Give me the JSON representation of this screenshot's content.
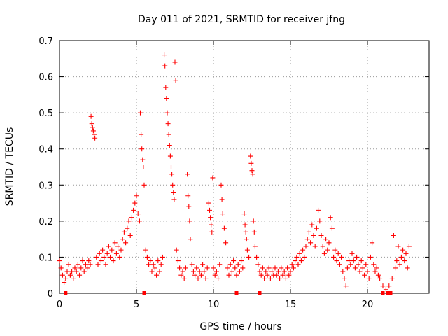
{
  "chart_data": {
    "type": "scatter",
    "title": "Day 011 of 2021, SRMTID for receiver jfng",
    "xlabel": "GPS time / hours",
    "ylabel": "SRMTID / TECUs",
    "xlim": [
      0,
      24
    ],
    "ylim": [
      0,
      0.7
    ],
    "xticks": [
      "0",
      "5",
      "10",
      "15",
      "20"
    ],
    "yticks": [
      "0",
      "0.1",
      "0.2",
      "0.3",
      "0.4",
      "0.5",
      "0.6",
      "0.7"
    ],
    "grid": true,
    "marker": "+",
    "color": "#ff0000",
    "baseline_markers_x": [
      0.4,
      5.5,
      11.5,
      13.0,
      21.0,
      21.3,
      21.5
    ],
    "series": [
      {
        "name": "SRMTID",
        "points": [
          [
            0.0,
            0.09
          ],
          [
            0.1,
            0.07
          ],
          [
            0.2,
            0.05
          ],
          [
            0.3,
            0.03
          ],
          [
            0.4,
            0.04
          ],
          [
            0.5,
            0.06
          ],
          [
            0.6,
            0.08
          ],
          [
            0.7,
            0.05
          ],
          [
            0.8,
            0.06
          ],
          [
            0.9,
            0.04
          ],
          [
            1.0,
            0.07
          ],
          [
            1.1,
            0.06
          ],
          [
            1.2,
            0.08
          ],
          [
            1.3,
            0.05
          ],
          [
            1.4,
            0.07
          ],
          [
            1.5,
            0.09
          ],
          [
            1.6,
            0.06
          ],
          [
            1.7,
            0.08
          ],
          [
            1.8,
            0.07
          ],
          [
            1.9,
            0.09
          ],
          [
            2.0,
            0.08
          ],
          [
            2.05,
            0.49
          ],
          [
            2.1,
            0.47
          ],
          [
            2.15,
            0.46
          ],
          [
            2.2,
            0.45
          ],
          [
            2.25,
            0.44
          ],
          [
            2.3,
            0.43
          ],
          [
            2.4,
            0.1
          ],
          [
            2.5,
            0.08
          ],
          [
            2.6,
            0.11
          ],
          [
            2.7,
            0.09
          ],
          [
            2.8,
            0.12
          ],
          [
            2.9,
            0.1
          ],
          [
            3.0,
            0.08
          ],
          [
            3.1,
            0.11
          ],
          [
            3.2,
            0.13
          ],
          [
            3.3,
            0.1
          ],
          [
            3.4,
            0.12
          ],
          [
            3.5,
            0.09
          ],
          [
            3.6,
            0.14
          ],
          [
            3.7,
            0.11
          ],
          [
            3.8,
            0.13
          ],
          [
            3.9,
            0.1
          ],
          [
            4.0,
            0.12
          ],
          [
            4.1,
            0.15
          ],
          [
            4.2,
            0.17
          ],
          [
            4.3,
            0.14
          ],
          [
            4.4,
            0.18
          ],
          [
            4.5,
            0.2
          ],
          [
            4.6,
            0.16
          ],
          [
            4.7,
            0.21
          ],
          [
            4.8,
            0.23
          ],
          [
            4.9,
            0.25
          ],
          [
            5.0,
            0.27
          ],
          [
            5.1,
            0.22
          ],
          [
            5.2,
            0.2
          ],
          [
            5.25,
            0.5
          ],
          [
            5.3,
            0.44
          ],
          [
            5.35,
            0.4
          ],
          [
            5.4,
            0.37
          ],
          [
            5.45,
            0.35
          ],
          [
            5.5,
            0.3
          ],
          [
            5.6,
            0.12
          ],
          [
            5.7,
            0.1
          ],
          [
            5.8,
            0.08
          ],
          [
            5.9,
            0.09
          ],
          [
            6.0,
            0.06
          ],
          [
            6.1,
            0.08
          ],
          [
            6.2,
            0.07
          ],
          [
            6.3,
            0.05
          ],
          [
            6.4,
            0.09
          ],
          [
            6.5,
            0.06
          ],
          [
            6.6,
            0.08
          ],
          [
            6.7,
            0.1
          ],
          [
            6.8,
            0.66
          ],
          [
            6.85,
            0.63
          ],
          [
            6.9,
            0.57
          ],
          [
            6.95,
            0.54
          ],
          [
            7.0,
            0.5
          ],
          [
            7.05,
            0.47
          ],
          [
            7.1,
            0.44
          ],
          [
            7.15,
            0.41
          ],
          [
            7.2,
            0.38
          ],
          [
            7.25,
            0.35
          ],
          [
            7.3,
            0.33
          ],
          [
            7.35,
            0.3
          ],
          [
            7.4,
            0.28
          ],
          [
            7.45,
            0.26
          ],
          [
            7.5,
            0.64
          ],
          [
            7.55,
            0.59
          ],
          [
            7.6,
            0.12
          ],
          [
            7.7,
            0.09
          ],
          [
            7.8,
            0.07
          ],
          [
            7.9,
            0.05
          ],
          [
            8.0,
            0.06
          ],
          [
            8.1,
            0.04
          ],
          [
            8.2,
            0.07
          ],
          [
            8.3,
            0.33
          ],
          [
            8.35,
            0.27
          ],
          [
            8.4,
            0.24
          ],
          [
            8.45,
            0.2
          ],
          [
            8.5,
            0.15
          ],
          [
            8.6,
            0.08
          ],
          [
            8.7,
            0.06
          ],
          [
            8.8,
            0.05
          ],
          [
            8.9,
            0.07
          ],
          [
            9.0,
            0.04
          ],
          [
            9.1,
            0.06
          ],
          [
            9.2,
            0.05
          ],
          [
            9.3,
            0.08
          ],
          [
            9.4,
            0.06
          ],
          [
            9.5,
            0.04
          ],
          [
            9.6,
            0.07
          ],
          [
            9.7,
            0.25
          ],
          [
            9.75,
            0.23
          ],
          [
            9.8,
            0.21
          ],
          [
            9.85,
            0.19
          ],
          [
            9.9,
            0.17
          ],
          [
            9.95,
            0.32
          ],
          [
            10.0,
            0.07
          ],
          [
            10.1,
            0.05
          ],
          [
            10.2,
            0.06
          ],
          [
            10.3,
            0.04
          ],
          [
            10.4,
            0.08
          ],
          [
            10.5,
            0.3
          ],
          [
            10.55,
            0.26
          ],
          [
            10.6,
            0.22
          ],
          [
            10.7,
            0.18
          ],
          [
            10.8,
            0.14
          ],
          [
            10.9,
            0.07
          ],
          [
            11.0,
            0.05
          ],
          [
            11.1,
            0.08
          ],
          [
            11.2,
            0.06
          ],
          [
            11.3,
            0.09
          ],
          [
            11.4,
            0.07
          ],
          [
            11.5,
            0.05
          ],
          [
            11.6,
            0.08
          ],
          [
            11.7,
            0.06
          ],
          [
            11.8,
            0.09
          ],
          [
            11.9,
            0.07
          ],
          [
            12.0,
            0.22
          ],
          [
            12.05,
            0.19
          ],
          [
            12.1,
            0.17
          ],
          [
            12.15,
            0.15
          ],
          [
            12.2,
            0.12
          ],
          [
            12.3,
            0.1
          ],
          [
            12.4,
            0.38
          ],
          [
            12.45,
            0.36
          ],
          [
            12.5,
            0.34
          ],
          [
            12.55,
            0.33
          ],
          [
            12.6,
            0.2
          ],
          [
            12.65,
            0.17
          ],
          [
            12.7,
            0.13
          ],
          [
            12.8,
            0.1
          ],
          [
            12.9,
            0.08
          ],
          [
            13.0,
            0.06
          ],
          [
            13.1,
            0.05
          ],
          [
            13.2,
            0.07
          ],
          [
            13.3,
            0.04
          ],
          [
            13.4,
            0.06
          ],
          [
            13.5,
            0.05
          ],
          [
            13.6,
            0.07
          ],
          [
            13.7,
            0.04
          ],
          [
            13.8,
            0.06
          ],
          [
            13.9,
            0.05
          ],
          [
            14.0,
            0.07
          ],
          [
            14.1,
            0.05
          ],
          [
            14.2,
            0.06
          ],
          [
            14.3,
            0.04
          ],
          [
            14.4,
            0.07
          ],
          [
            14.5,
            0.05
          ],
          [
            14.6,
            0.06
          ],
          [
            14.7,
            0.04
          ],
          [
            14.8,
            0.07
          ],
          [
            14.9,
            0.05
          ],
          [
            15.0,
            0.06
          ],
          [
            15.1,
            0.08
          ],
          [
            15.2,
            0.07
          ],
          [
            15.3,
            0.09
          ],
          [
            15.4,
            0.1
          ],
          [
            15.5,
            0.08
          ],
          [
            15.6,
            0.11
          ],
          [
            15.7,
            0.09
          ],
          [
            15.8,
            0.12
          ],
          [
            15.9,
            0.1
          ],
          [
            16.0,
            0.13
          ],
          [
            16.1,
            0.15
          ],
          [
            16.2,
            0.17
          ],
          [
            16.3,
            0.14
          ],
          [
            16.4,
            0.19
          ],
          [
            16.5,
            0.16
          ],
          [
            16.6,
            0.13
          ],
          [
            16.7,
            0.18
          ],
          [
            16.8,
            0.23
          ],
          [
            16.9,
            0.2
          ],
          [
            17.0,
            0.16
          ],
          [
            17.1,
            0.13
          ],
          [
            17.2,
            0.11
          ],
          [
            17.3,
            0.15
          ],
          [
            17.4,
            0.12
          ],
          [
            17.5,
            0.14
          ],
          [
            17.6,
            0.21
          ],
          [
            17.7,
            0.18
          ],
          [
            17.8,
            0.1
          ],
          [
            17.9,
            0.12
          ],
          [
            18.0,
            0.09
          ],
          [
            18.1,
            0.11
          ],
          [
            18.2,
            0.08
          ],
          [
            18.3,
            0.1
          ],
          [
            18.4,
            0.06
          ],
          [
            18.5,
            0.04
          ],
          [
            18.6,
            0.02
          ],
          [
            18.7,
            0.07
          ],
          [
            18.8,
            0.09
          ],
          [
            18.9,
            0.08
          ],
          [
            19.0,
            0.11
          ],
          [
            19.1,
            0.09
          ],
          [
            19.2,
            0.07
          ],
          [
            19.3,
            0.1
          ],
          [
            19.4,
            0.08
          ],
          [
            19.5,
            0.06
          ],
          [
            19.6,
            0.09
          ],
          [
            19.7,
            0.07
          ],
          [
            19.8,
            0.05
          ],
          [
            19.9,
            0.08
          ],
          [
            20.0,
            0.06
          ],
          [
            20.1,
            0.04
          ],
          [
            20.2,
            0.1
          ],
          [
            20.3,
            0.14
          ],
          [
            20.4,
            0.08
          ],
          [
            20.5,
            0.06
          ],
          [
            20.6,
            0.07
          ],
          [
            20.7,
            0.05
          ],
          [
            20.8,
            0.04
          ],
          [
            21.0,
            0.02
          ],
          [
            21.2,
            0.01
          ],
          [
            21.4,
            0.02
          ],
          [
            21.6,
            0.04
          ],
          [
            21.7,
            0.16
          ],
          [
            21.8,
            0.07
          ],
          [
            21.9,
            0.09
          ],
          [
            22.0,
            0.13
          ],
          [
            22.1,
            0.08
          ],
          [
            22.2,
            0.1
          ],
          [
            22.3,
            0.12
          ],
          [
            22.4,
            0.09
          ],
          [
            22.5,
            0.11
          ],
          [
            22.6,
            0.07
          ],
          [
            22.7,
            0.13
          ]
        ]
      }
    ]
  }
}
